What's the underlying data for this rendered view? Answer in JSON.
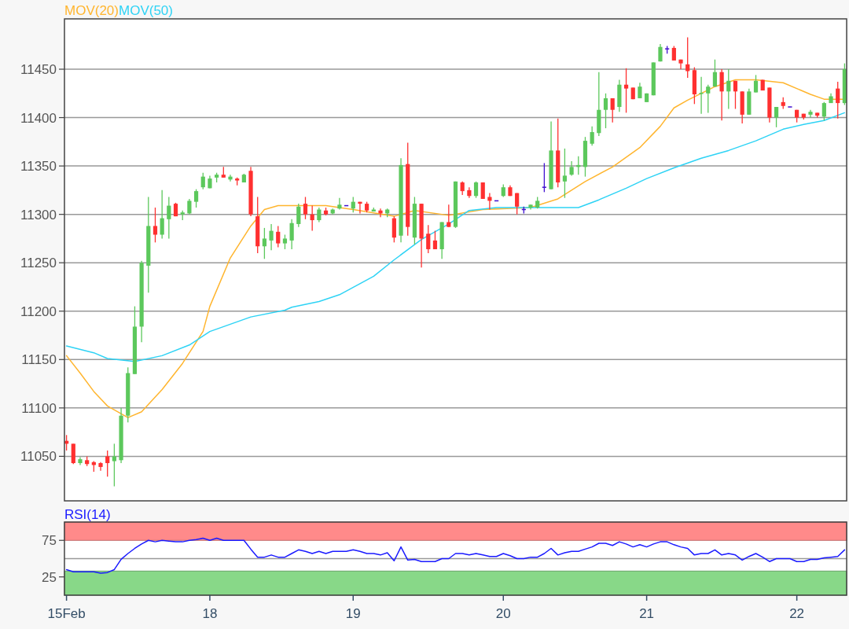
{
  "chart_data": [
    {
      "type": "candlestick",
      "legend": "top left",
      "grid": "y",
      "tick_labels": "y",
      "categories": [
        null,
        null,
        null,
        null,
        null,
        null,
        null,
        null,
        null,
        null,
        null,
        null,
        null,
        null,
        null,
        null,
        null,
        null,
        null,
        null,
        null,
        null,
        null,
        null,
        null,
        null,
        null,
        null,
        null,
        null,
        null,
        null,
        null,
        null,
        null,
        null,
        null,
        null,
        null,
        null,
        null,
        null,
        null,
        null,
        null,
        null,
        null,
        null,
        null,
        null,
        null,
        null,
        null,
        null,
        null,
        null,
        null,
        null,
        null,
        null,
        null,
        null,
        null,
        null,
        null,
        null,
        null,
        null,
        null,
        null,
        null,
        null,
        null,
        null,
        null,
        null,
        null,
        null,
        null,
        null,
        null,
        null,
        null,
        null,
        null,
        null,
        null,
        null,
        null,
        null,
        null,
        null,
        null,
        null,
        null,
        null,
        null,
        null,
        null,
        null,
        null,
        null,
        null,
        null,
        null,
        null,
        null,
        null,
        null,
        null,
        null,
        null,
        null,
        null,
        null
      ],
      "ylim": [
        11004,
        11502
      ],
      "yticks": [
        11050,
        11100,
        11150,
        11200,
        11250,
        11300,
        11350,
        11400,
        11450
      ],
      "series": [
        {
          "ohlc": [
            [
              11066,
              11072,
              11056,
              11063
            ],
            [
              11063,
              11063,
              11042,
              11043
            ],
            [
              11043,
              11049,
              11041,
              11047
            ],
            [
              11046,
              11050,
              11040,
              11042
            ],
            [
              11044,
              11045,
              11034,
              11041
            ],
            [
              11043,
              11044,
              11035,
              11039
            ],
            [
              11050,
              11056,
              11029,
              11043
            ],
            [
              11045,
              11063,
              11019,
              11050
            ],
            [
              11046,
              11100,
              11043,
              11092
            ],
            [
              11092,
              11142,
              11085,
              11136
            ],
            [
              11135,
              11205,
              11135,
              11184
            ],
            [
              11184,
              11252,
              11168,
              11250
            ],
            [
              11247,
              11318,
              11219,
              11288
            ],
            [
              11288,
              11307,
              11271,
              11279
            ],
            [
              11279,
              11325,
              11275,
              11296
            ],
            [
              11295,
              11318,
              11275,
              11309
            ],
            [
              11311,
              11312,
              11298,
              11298
            ],
            [
              11300,
              11304,
              11294,
              11302
            ],
            [
              11301,
              11316,
              11300,
              11314
            ],
            [
              11313,
              11326,
              11307,
              11324
            ],
            [
              11328,
              11343,
              11326,
              11339
            ],
            [
              11327,
              11340,
              11327,
              11337
            ],
            [
              11338,
              11343,
              11333,
              11341
            ],
            [
              11341,
              11349,
              11338,
              11338
            ],
            [
              11336,
              11341,
              11334,
              11339
            ],
            [
              11337,
              11338,
              11330,
              11335
            ],
            [
              11333,
              11342,
              11333,
              11341
            ],
            [
              11345,
              11349,
              11298,
              11300
            ],
            [
              11298,
              11318,
              11260,
              11267
            ],
            [
              11267,
              11286,
              11254,
              11275
            ],
            [
              11273,
              11290,
              11263,
              11283
            ],
            [
              11282,
              11288,
              11266,
              11270
            ],
            [
              11270,
              11279,
              11264,
              11275
            ],
            [
              11273,
              11295,
              11264,
              11291
            ],
            [
              11290,
              11311,
              11287,
              11308
            ],
            [
              11311,
              11318,
              11295,
              11300
            ],
            [
              11300,
              11309,
              11283,
              11294
            ],
            [
              11294,
              11307,
              11292,
              11305
            ],
            [
              11304,
              11307,
              11299,
              11300
            ],
            [
              11301,
              11306,
              11300,
              11305
            ],
            [
              11306,
              11317,
              11305,
              11310
            ],
            [
              11309,
              11309,
              11309,
              11309
            ],
            [
              11306,
              11318,
              11302,
              11313
            ],
            [
              11313,
              11313,
              11301,
              11311
            ],
            [
              11311,
              11313,
              11302,
              11304
            ],
            [
              11303,
              11307,
              11303,
              11305
            ],
            [
              11304,
              11306,
              11297,
              11301
            ],
            [
              11301,
              11306,
              11297,
              11305
            ],
            [
              11296,
              11298,
              11271,
              11276
            ],
            [
              11278,
              11358,
              11271,
              11351
            ],
            [
              11352,
              11374,
              11278,
              11287
            ],
            [
              11276,
              11318,
              11269,
              11311
            ],
            [
              11311,
              11311,
              11245,
              11275
            ],
            [
              11280,
              11289,
              11260,
              11264
            ],
            [
              11273,
              11283,
              11264,
              11264
            ],
            [
              11264,
              11292,
              11254,
              11292
            ],
            [
              11292,
              11310,
              11287,
              11287
            ],
            [
              11287,
              11334,
              11286,
              11334
            ],
            [
              11333,
              11334,
              11320,
              11324
            ],
            [
              11325,
              11328,
              11317,
              11319
            ],
            [
              11319,
              11334,
              11317,
              11333
            ],
            [
              11333,
              11333,
              11316,
              11316
            ],
            [
              11318,
              11322,
              11305,
              11314
            ],
            [
              11314,
              11314,
              11314,
              11314
            ],
            [
              11319,
              11331,
              11318,
              11328
            ],
            [
              11328,
              11330,
              11319,
              11319
            ],
            [
              11322,
              11322,
              11300,
              11308
            ],
            [
              11305,
              11308,
              11301,
              11305
            ],
            [
              11307,
              11310,
              11305,
              11310
            ],
            [
              11307,
              11318,
              11306,
              11314
            ],
            [
              11328,
              11353,
              11323,
              11328
            ],
            [
              11326,
              11396,
              11326,
              11366
            ],
            [
              11366,
              11399,
              11328,
              11333
            ],
            [
              11334,
              11368,
              11317,
              11340
            ],
            [
              11341,
              11355,
              11340,
              11349
            ],
            [
              11349,
              11360,
              11341,
              11351
            ],
            [
              11349,
              11380,
              11339,
              11376
            ],
            [
              11373,
              11391,
              11371,
              11385
            ],
            [
              11384,
              11447,
              11381,
              11408
            ],
            [
              11408,
              11425,
              11389,
              11420
            ],
            [
              11420,
              11420,
              11395,
              11408
            ],
            [
              11411,
              11439,
              11406,
              11434
            ],
            [
              11434,
              11451,
              11405,
              11430
            ],
            [
              11431,
              11431,
              11419,
              11419
            ],
            [
              11420,
              11436,
              11420,
              11432
            ],
            [
              11416,
              11425,
              11416,
              11425
            ],
            [
              11423,
              11457,
              11423,
              11457
            ],
            [
              11458,
              11476,
              11458,
              11473
            ],
            [
              11471,
              11474,
              11466,
              11471
            ],
            [
              11472,
              11474,
              11459,
              11459
            ],
            [
              11460,
              11460,
              11450,
              11456
            ],
            [
              11455,
              11483,
              11441,
              11448
            ],
            [
              11449,
              11452,
              11414,
              11424
            ],
            [
              11425,
              11442,
              11404,
              11426
            ],
            [
              11425,
              11434,
              11405,
              11432
            ],
            [
              11432,
              11460,
              11432,
              11447
            ],
            [
              11447,
              11450,
              11397,
              11427
            ],
            [
              11427,
              11450,
              11409,
              11438
            ],
            [
              11438,
              11438,
              11409,
              11427
            ],
            [
              11427,
              11427,
              11394,
              11403
            ],
            [
              11403,
              11430,
              11403,
              11427
            ],
            [
              11426,
              11444,
              11426,
              11438
            ],
            [
              11439,
              11439,
              11428,
              11428
            ],
            [
              11431,
              11431,
              11395,
              11400
            ],
            [
              11400,
              11411,
              11390,
              11411
            ],
            [
              11416,
              11421,
              11409,
              11412
            ],
            [
              11411,
              11411,
              11411,
              11411
            ],
            [
              11408,
              11408,
              11395,
              11400
            ],
            [
              11404,
              11404,
              11398,
              11400
            ],
            [
              11403,
              11408,
              11400,
              11406
            ],
            [
              11405,
              11405,
              11400,
              11402
            ],
            [
              11401,
              11416,
              11397,
              11415
            ],
            [
              11415,
              11425,
              11415,
              11422
            ],
            [
              11430,
              11437,
              11399,
              11415
            ],
            [
              11415,
              11456,
              11413,
              11450
            ]
          ],
          "colors": [
            "#ff3030",
            "#ff3030",
            "#5cc85c",
            "#ff3030",
            "#ff3030",
            "#ff3030",
            "#ff3030",
            "#5cc85c",
            "#5cc85c",
            "#5cc85c",
            "#5cc85c",
            "#5cc85c",
            "#5cc85c",
            "#ff3030",
            "#5cc85c",
            "#5cc85c",
            "#ff3030",
            "#5cc85c",
            "#5cc85c",
            "#5cc85c",
            "#5cc85c",
            "#5cc85c",
            "#5cc85c",
            "#ff3030",
            "#5cc85c",
            "#ff3030",
            "#5cc85c",
            "#ff3030",
            "#ff3030",
            "#5cc85c",
            "#5cc85c",
            "#ff3030",
            "#5cc85c",
            "#5cc85c",
            "#5cc85c",
            "#ff3030",
            "#ff3030",
            "#5cc85c",
            "#ff3030",
            "#5cc85c",
            "#5cc85c",
            "#4010d0",
            "#5cc85c",
            "#ff3030",
            "#ff3030",
            "#5cc85c",
            "#ff3030",
            "#5cc85c",
            "#ff3030",
            "#5cc85c",
            "#ff3030",
            "#5cc85c",
            "#ff3030",
            "#ff3030",
            "#ff3030",
            "#5cc85c",
            "#ff3030",
            "#5cc85c",
            "#ff3030",
            "#ff3030",
            "#5cc85c",
            "#ff3030",
            "#ff3030",
            "#4010d0",
            "#5cc85c",
            "#ff3030",
            "#ff3030",
            "#4010d0",
            "#5cc85c",
            "#5cc85c",
            "#4010d0",
            "#5cc85c",
            "#ff3030",
            "#5cc85c",
            "#5cc85c",
            "#5cc85c",
            "#5cc85c",
            "#5cc85c",
            "#5cc85c",
            "#5cc85c",
            "#ff3030",
            "#5cc85c",
            "#ff3030",
            "#ff3030",
            "#5cc85c",
            "#5cc85c",
            "#5cc85c",
            "#5cc85c",
            "#4010d0",
            "#ff3030",
            "#ff3030",
            "#ff3030",
            "#ff3030",
            "#5cc85c",
            "#5cc85c",
            "#5cc85c",
            "#ff3030",
            "#5cc85c",
            "#ff3030",
            "#ff3030",
            "#5cc85c",
            "#5cc85c",
            "#ff3030",
            "#ff3030",
            "#5cc85c",
            "#ff3030",
            "#4010d0",
            "#ff3030",
            "#ff3030",
            "#5cc85c",
            "#ff3030",
            "#5cc85c",
            "#5cc85c",
            "#ff3030",
            "#5cc85c"
          ]
        },
        {
          "type": "line",
          "name": "MOV(20)",
          "color": "#ffb52e",
          "values": [
            11154,
            null,
            11136,
            null,
            11117,
            null,
            11102,
            null,
            null,
            11090,
            null,
            11096,
            null,
            null,
            11119,
            null,
            null,
            11146,
            null,
            null,
            11179,
            11205,
            null,
            null,
            11255,
            null,
            null,
            11288,
            null,
            11305,
            null,
            11309,
            null,
            11309,
            null,
            null,
            null,
            null,
            11309,
            null,
            null,
            null,
            11305,
            null,
            null,
            null,
            null,
            null,
            11298,
            null,
            null,
            11304,
            null,
            null,
            null,
            null,
            11299,
            null,
            null,
            null,
            null,
            11305,
            null,
            null,
            null,
            null,
            null,
            null,
            11307,
            null,
            null,
            null,
            11316,
            null,
            null,
            null,
            11334,
            null,
            null,
            null,
            11349,
            null,
            null,
            null,
            11369,
            null,
            null,
            11391,
            null,
            11410,
            null,
            11418,
            null,
            null,
            null,
            11432,
            null,
            null,
            11439,
            null,
            null,
            11439,
            null,
            null,
            null,
            11436,
            null,
            null,
            null,
            11424,
            null,
            11419,
            null,
            null,
            11419
          ]
        },
        {
          "type": "line",
          "name": "MOV(50)",
          "color": "#2ed3f5",
          "values": [
            11164,
            null,
            null,
            null,
            11157,
            null,
            11151,
            null,
            null,
            null,
            11148,
            null,
            null,
            null,
            11154,
            null,
            null,
            null,
            11165,
            null,
            null,
            11179,
            null,
            null,
            null,
            null,
            null,
            11194,
            null,
            null,
            null,
            null,
            11201,
            11204,
            null,
            null,
            null,
            11210,
            null,
            null,
            11217,
            null,
            null,
            null,
            null,
            11236,
            null,
            null,
            11253,
            null,
            null,
            null,
            11274,
            null,
            null,
            null,
            11290,
            null,
            null,
            11304,
            null,
            null,
            null,
            11307,
            null,
            null,
            null,
            null,
            11307,
            null,
            null,
            null,
            11307,
            null,
            null,
            11307,
            null,
            null,
            11315,
            null,
            null,
            null,
            11327,
            null,
            null,
            11337,
            null,
            null,
            null,
            11348,
            null,
            null,
            null,
            11358,
            null,
            null,
            null,
            11366,
            null,
            null,
            null,
            11376,
            null,
            null,
            null,
            11388,
            null,
            null,
            11393,
            null,
            null,
            11397,
            null,
            null,
            11405
          ]
        }
      ]
    },
    {
      "type": "line",
      "title": "RSI(14)",
      "categories": [
        "15Feb",
        null,
        null,
        null,
        null,
        null,
        null,
        null,
        null,
        null,
        null,
        null,
        null,
        null,
        null,
        null,
        null,
        null,
        null,
        null,
        null,
        "18",
        null,
        null,
        null,
        null,
        null,
        null,
        null,
        null,
        null,
        null,
        null,
        null,
        null,
        null,
        null,
        null,
        null,
        null,
        null,
        null,
        "19",
        null,
        null,
        null,
        null,
        null,
        null,
        null,
        null,
        null,
        null,
        null,
        null,
        null,
        null,
        null,
        null,
        null,
        null,
        null,
        null,
        null,
        "20",
        null,
        null,
        null,
        null,
        null,
        null,
        null,
        null,
        null,
        null,
        null,
        null,
        null,
        null,
        null,
        null,
        null,
        null,
        null,
        null,
        "21",
        null,
        null,
        null,
        null,
        null,
        null,
        null,
        null,
        null,
        null,
        null,
        null,
        null,
        null,
        null,
        null,
        null,
        null,
        null,
        null,
        null,
        "22",
        null,
        null,
        null,
        null,
        null,
        null,
        null
      ],
      "ylim": [
        0,
        100
      ],
      "yticks": [
        25,
        75
      ],
      "bands": [
        {
          "axis": "y",
          "from": 75,
          "to": 100,
          "color": "#ff8a8a"
        },
        {
          "axis": "y",
          "from": 0,
          "to": 33,
          "color": "#88d888"
        }
      ],
      "ref_lines": [
        {
          "axis": "y",
          "value": 50,
          "color": "#999999"
        }
      ],
      "series": [
        {
          "color": "#1a1aff",
          "values": [
            35,
            32,
            32,
            32,
            32,
            30,
            31,
            35,
            49,
            57,
            64,
            70,
            75,
            73,
            75,
            74,
            73,
            73,
            75,
            76,
            78,
            75,
            78,
            75,
            75,
            75,
            75,
            63,
            52,
            52,
            55,
            52,
            52,
            57,
            62,
            60,
            57,
            60,
            57,
            60,
            60,
            60,
            62,
            60,
            57,
            57,
            55,
            58,
            47,
            66,
            48,
            49,
            46,
            46,
            46,
            50,
            50,
            57,
            57,
            55,
            57,
            55,
            53,
            53,
            57,
            54,
            50,
            50,
            52,
            52,
            57,
            64,
            55,
            58,
            60,
            60,
            63,
            66,
            71,
            71,
            68,
            73,
            70,
            66,
            69,
            66,
            70,
            73,
            73,
            69,
            66,
            64,
            55,
            57,
            57,
            62,
            55,
            57,
            55,
            48,
            53,
            57,
            52,
            46,
            50,
            50,
            50,
            46,
            46,
            49,
            49,
            51,
            52,
            53,
            62
          ]
        }
      ]
    }
  ]
}
